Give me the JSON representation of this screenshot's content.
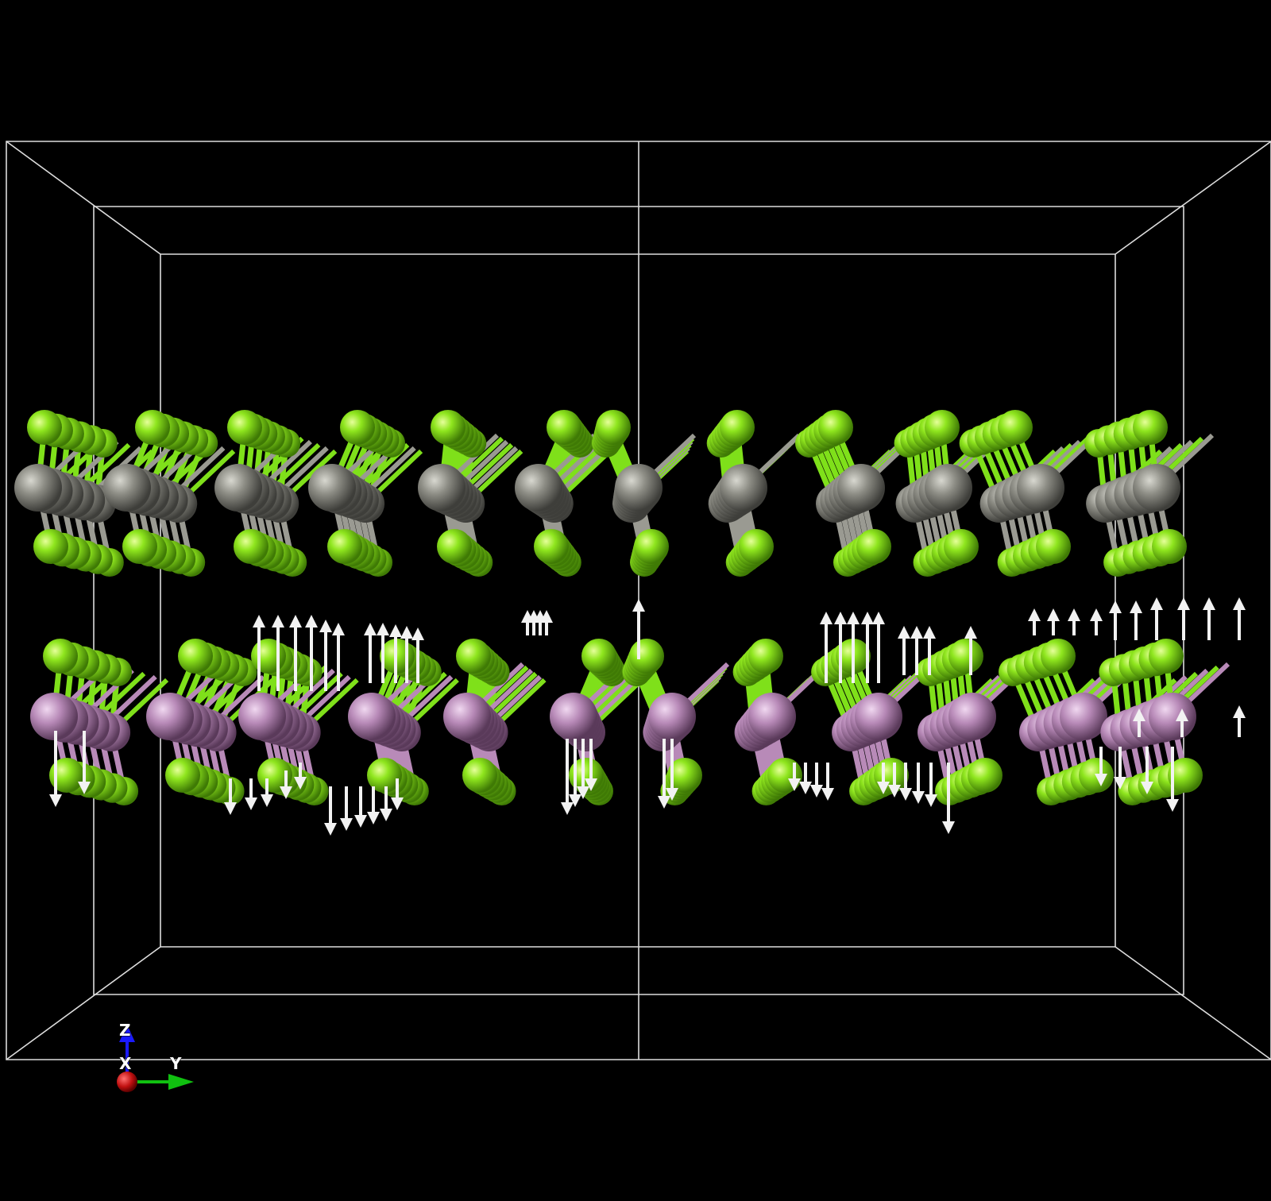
{
  "scene": {
    "background": "#000000",
    "cell_color": "#dddddd",
    "atom_colors": {
      "chalcogen": "#7fe01a",
      "metal_top": "#8c8c84",
      "metal_bottom": "#b88ab8"
    },
    "arrow_color": "#f2f2f2"
  },
  "axes": {
    "z_label": "Z",
    "x_label": "X",
    "y_label": "Y",
    "z_color": "#1a1aff",
    "x_color": "#c01010",
    "y_color": "#10c010"
  }
}
